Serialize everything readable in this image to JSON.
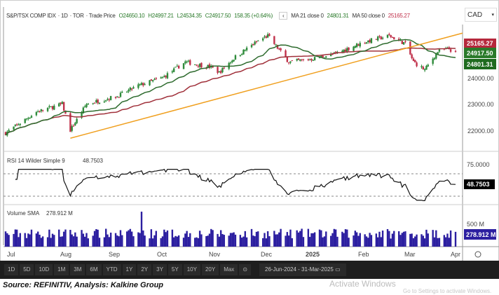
{
  "header": {
    "instrument": "S&P/TSX COMP IDX",
    "interval": "1D",
    "exchange": "TOR",
    "price_type": "Trade Price",
    "open": "O24650.10",
    "high": "H24997.21",
    "low": "L24534.35",
    "close": "C24917.50",
    "change": "158.35 (+0.64%)",
    "ma21_label": "MA 21 close 0",
    "ma21_value": "24801.31",
    "ma50_label": "MA 50 close 0",
    "ma50_value": "25165.27"
  },
  "currency": "CAD",
  "price_axis": {
    "ticks": [
      "24000.00",
      "23000.00",
      "22000.00"
    ],
    "badges": {
      "ma50": "25165.27",
      "close": "24917.50",
      "ma21": "24801.31"
    }
  },
  "rsi": {
    "label": "RSI 14 Wilder Simple 9",
    "value": "48.7503",
    "tick": "75.0000"
  },
  "volume": {
    "label": "Volume SMA",
    "value": "278.912 M",
    "tick": "500 M"
  },
  "time_axis": [
    "Jul",
    "Aug",
    "Sep",
    "Oct",
    "Nov",
    "Dec",
    "2025",
    "Feb",
    "Mar",
    "Apr"
  ],
  "toolbar": {
    "ranges": [
      "1D",
      "5D",
      "10D",
      "1M",
      "3M",
      "6M",
      "YTD",
      "1Y",
      "2Y",
      "3Y",
      "5Y",
      "10Y",
      "20Y",
      "Max"
    ],
    "date_range": "26-Jun-2024  -  31-Mar-2025"
  },
  "watermark": {
    "title": "Activate Windows",
    "sub": "Go to Settings to activate Windows."
  },
  "source": "Source: REFINITIV, Analysis: Kalkine Group",
  "colors": {
    "up": "#2e8b3a",
    "down": "#c0304a",
    "ma21": "#2e6b2e",
    "ma50": "#a0303a",
    "trend": "#f0a020",
    "volume": "#2c1fa0",
    "rsi": "#111111"
  },
  "chart_data": {
    "type": "candlestick",
    "x_range": [
      "2024-06-26",
      "2025-03-31"
    ],
    "y_range": [
      21500,
      26000
    ],
    "close_keypoints": [
      [
        "2024-06-26",
        21900
      ],
      [
        "2024-07-15",
        22700
      ],
      [
        "2024-07-31",
        23000
      ],
      [
        "2024-08-05",
        22000
      ],
      [
        "2024-08-15",
        23000
      ],
      [
        "2024-09-03",
        23300
      ],
      [
        "2024-09-16",
        23700
      ],
      [
        "2024-10-01",
        24000
      ],
      [
        "2024-10-15",
        24600
      ],
      [
        "2024-10-31",
        24400
      ],
      [
        "2024-11-05",
        24200
      ],
      [
        "2024-11-15",
        24800
      ],
      [
        "2024-11-29",
        25400
      ],
      [
        "2024-12-05",
        25600
      ],
      [
        "2024-12-18",
        24600
      ],
      [
        "2024-12-31",
        24700
      ],
      [
        "2025-01-15",
        24900
      ],
      [
        "2025-01-31",
        25300
      ],
      [
        "2025-02-05",
        25400
      ],
      [
        "2025-02-18",
        25600
      ],
      [
        "2025-02-28",
        25300
      ],
      [
        "2025-03-05",
        24600
      ],
      [
        "2025-03-12",
        24300
      ],
      [
        "2025-03-20",
        25000
      ],
      [
        "2025-03-27",
        25100
      ],
      [
        "2025-03-31",
        24917.5
      ]
    ],
    "trendline": [
      [
        "2024-08-05",
        21700
      ],
      [
        "2025-03-31",
        25700
      ]
    ],
    "rsi_levels": [
      70,
      30
    ]
  }
}
